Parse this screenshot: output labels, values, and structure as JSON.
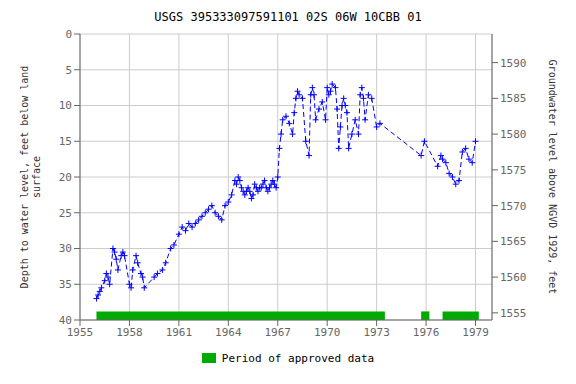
{
  "chart_data": {
    "type": "line",
    "title": "USGS 395333097591101 02S 06W 10CBB 01",
    "ylabel": "Depth to water level, feet below land\n surface",
    "y2label": "Groundwater level above NGVD 1929, feet",
    "xlim": [
      1955,
      1980
    ],
    "xticks": [
      1955,
      1958,
      1961,
      1964,
      1967,
      1970,
      1973,
      1976,
      1979
    ],
    "ylim": [
      40,
      0
    ],
    "yticks": [
      0,
      5,
      10,
      15,
      20,
      25,
      30,
      35,
      40
    ],
    "y2lim": [
      1554,
      1594
    ],
    "y2ticks": [
      1555,
      1560,
      1565,
      1570,
      1575,
      1580,
      1585,
      1590
    ],
    "grid": true,
    "legend": "bottom",
    "color": "#0000ff",
    "marker": "plus",
    "line_style": "dashed",
    "approved": {
      "name": "Period of approved data",
      "color": "#00aa00",
      "periods": [
        [
          1956.0,
          1973.5
        ],
        [
          1975.7,
          1976.2
        ],
        [
          1977.0,
          1979.2
        ]
      ]
    },
    "x": [
      1956.0,
      1956.1,
      1956.2,
      1956.3,
      1956.5,
      1956.6,
      1956.7,
      1956.8,
      1957.0,
      1957.1,
      1957.2,
      1957.3,
      1957.5,
      1957.6,
      1957.7,
      1958.0,
      1958.1,
      1958.2,
      1958.4,
      1958.5,
      1958.7,
      1958.8,
      1958.9,
      1959.5,
      1959.7,
      1960.0,
      1960.2,
      1960.5,
      1960.7,
      1961.0,
      1961.2,
      1961.4,
      1961.6,
      1961.8,
      1962.0,
      1962.2,
      1962.4,
      1962.6,
      1962.8,
      1963.0,
      1963.2,
      1963.4,
      1963.6,
      1963.8,
      1964.0,
      1964.2,
      1964.4,
      1964.5,
      1964.6,
      1964.7,
      1964.8,
      1964.9,
      1965.0,
      1965.1,
      1965.2,
      1965.3,
      1965.4,
      1965.5,
      1965.6,
      1965.7,
      1965.8,
      1965.9,
      1966.0,
      1966.1,
      1966.2,
      1966.3,
      1966.4,
      1966.5,
      1966.6,
      1966.7,
      1966.8,
      1966.9,
      1967.0,
      1967.1,
      1967.2,
      1967.3,
      1967.5,
      1967.7,
      1967.9,
      1968.0,
      1968.1,
      1968.2,
      1968.3,
      1968.5,
      1968.7,
      1968.9,
      1969.0,
      1969.1,
      1969.2,
      1969.3,
      1969.5,
      1969.7,
      1969.9,
      1970.0,
      1970.1,
      1970.2,
      1970.3,
      1970.5,
      1970.6,
      1970.7,
      1970.8,
      1970.9,
      1971.0,
      1971.1,
      1971.2,
      1971.3,
      1971.5,
      1971.7,
      1971.9,
      1972.0,
      1972.1,
      1972.2,
      1972.3,
      1972.5,
      1972.7,
      1973.0,
      1973.2,
      1975.7,
      1975.9,
      1976.7,
      1976.9,
      1977.0,
      1977.2,
      1977.4,
      1977.6,
      1977.8,
      1978.0,
      1978.2,
      1978.4,
      1978.6,
      1978.8,
      1979.0
    ],
    "values": [
      37.0,
      36.5,
      36.0,
      35.5,
      34.5,
      33.5,
      34.0,
      35.0,
      30.0,
      30.5,
      31.5,
      33.0,
      31.0,
      30.5,
      31.0,
      35.0,
      35.5,
      33.0,
      31.0,
      32.0,
      33.5,
      34.0,
      35.5,
      34.0,
      33.5,
      33.0,
      32.0,
      30.0,
      29.5,
      28.0,
      27.0,
      27.5,
      26.5,
      27.0,
      26.5,
      26.0,
      25.5,
      25.0,
      24.5,
      24.0,
      25.0,
      25.5,
      26.0,
      24.0,
      23.5,
      22.5,
      20.5,
      21.0,
      20.0,
      20.5,
      21.5,
      22.0,
      22.5,
      22.0,
      21.5,
      22.0,
      23.0,
      22.5,
      21.0,
      21.5,
      22.0,
      21.5,
      21.5,
      21.0,
      20.5,
      21.5,
      22.0,
      21.5,
      21.0,
      20.5,
      21.0,
      21.5,
      20.0,
      16.0,
      14.0,
      12.0,
      11.5,
      12.5,
      14.0,
      11.0,
      9.0,
      8.0,
      8.5,
      9.0,
      15.0,
      17.0,
      8.5,
      7.5,
      8.5,
      12.0,
      10.5,
      9.5,
      12.0,
      7.5,
      8.5,
      8.0,
      7.0,
      7.5,
      10.5,
      16.0,
      13.0,
      10.0,
      9.0,
      10.0,
      11.0,
      16.0,
      14.0,
      12.0,
      14.0,
      8.5,
      7.5,
      9.0,
      12.0,
      8.5,
      9.0,
      13.0,
      12.5,
      17.0,
      15.0,
      18.5,
      17.0,
      17.5,
      18.0,
      19.5,
      20.0,
      21.0,
      20.5,
      16.5,
      16.0,
      17.5,
      18.0,
      15.0
    ]
  }
}
